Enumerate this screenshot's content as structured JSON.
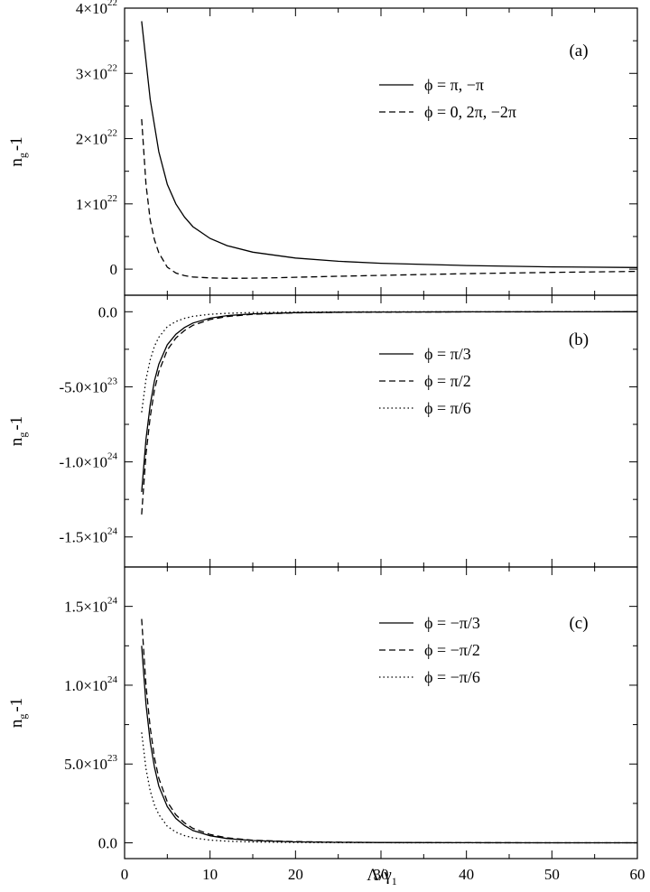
{
  "xaxis": {
    "label_main": "Λ/γ",
    "label_sub": "1",
    "range": [
      0,
      60
    ],
    "ticks": [
      0,
      10,
      20,
      30,
      40,
      50,
      60
    ],
    "tick_labels": [
      "0",
      "10",
      "20",
      "30",
      "40",
      "50",
      "60"
    ]
  },
  "chart_data": [
    {
      "type": "line",
      "panel_label": "(a)",
      "ylabel_main": "n",
      "ylabel_sub": "g",
      "ylabel_suffix": "-1",
      "ylim": [
        -4e+21,
        4e+22
      ],
      "y_ticks": [
        {
          "value": 0,
          "mantissa": "0",
          "exponent": ""
        },
        {
          "value": 1e+22,
          "mantissa": "1×10",
          "exponent": "22"
        },
        {
          "value": 2e+22,
          "mantissa": "2×10",
          "exponent": "22"
        },
        {
          "value": 3e+22,
          "mantissa": "3×10",
          "exponent": "22"
        },
        {
          "value": 4e+22,
          "mantissa": "4×10",
          "exponent": "22"
        }
      ],
      "legend_position": "top-right",
      "series": [
        {
          "name": "ϕ = π, −π",
          "style": "solid",
          "x": [
            2,
            3,
            4,
            5,
            6,
            7,
            8,
            10,
            12,
            15,
            20,
            25,
            30,
            40,
            50,
            60
          ],
          "y": [
            3.8e+22,
            2.6e+22,
            1.8e+22,
            1.3e+22,
            1e+22,
            8e+21,
            6.5e+21,
            4.7e+21,
            3.6e+21,
            2.6e+21,
            1.7e+21,
            1.2e+21,
            9e+20,
            5.5e+20,
            3.5e+20,
            2.5e+20
          ]
        },
        {
          "name": "ϕ = 0, 2π, −2π",
          "style": "dashed",
          "x": [
            2,
            2.5,
            3,
            3.5,
            4,
            5,
            6,
            7,
            8,
            10,
            12,
            14,
            17,
            20,
            25,
            30,
            40,
            50,
            60
          ],
          "y": [
            2.3e+22,
            1.3e+22,
            7.5e+21,
            4.5e+21,
            2.5e+21,
            3e+20,
            -6e+20,
            -1e+21,
            -1.2e+21,
            -1.35e+21,
            -1.4e+21,
            -1.4e+21,
            -1.35e+21,
            -1.25e+21,
            -1.1e+21,
            -9.5e+20,
            -7e+20,
            -5e+20,
            -3.5e+20
          ]
        }
      ]
    },
    {
      "type": "line",
      "panel_label": "(b)",
      "ylabel_main": "n",
      "ylabel_sub": "g",
      "ylabel_suffix": "-1",
      "ylim": [
        -1.7e+24,
        1.1e+23
      ],
      "y_ticks": [
        {
          "value": 0,
          "mantissa": "0.0",
          "exponent": ""
        },
        {
          "value": -5e+23,
          "mantissa": "-5.0×10",
          "exponent": "23"
        },
        {
          "value": -1e+24,
          "mantissa": "-1.0×10",
          "exponent": "24"
        },
        {
          "value": -1.5e+24,
          "mantissa": "-1.5×10",
          "exponent": "24"
        }
      ],
      "legend_position": "top-right",
      "series": [
        {
          "name": "ϕ = π/3",
          "style": "solid",
          "x": [
            2,
            2.5,
            3,
            3.5,
            4,
            5,
            6,
            7,
            8,
            10,
            12,
            15,
            20,
            25,
            30,
            40,
            50,
            60
          ],
          "y": [
            -1.2e+24,
            -8.5e+23,
            -6.2e+23,
            -4.6e+23,
            -3.5e+23,
            -2.2e+23,
            -1.5e+23,
            -1.05e+23,
            -7.5e+22,
            -4.3e+22,
            -2.6e+22,
            -1.4e+22,
            -6e+21,
            -3e+21,
            -1.8e+21,
            -8e+20,
            -4e+20,
            -2e+20
          ]
        },
        {
          "name": "ϕ = π/2",
          "style": "dashed",
          "x": [
            2,
            2.5,
            3,
            3.5,
            4,
            5,
            6,
            7,
            8,
            10,
            12,
            15,
            20,
            25,
            30,
            40,
            50,
            60
          ],
          "y": [
            -1.35e+24,
            -9.5e+23,
            -7e+23,
            -5.2e+23,
            -4e+23,
            -2.55e+23,
            -1.75e+23,
            -1.25e+23,
            -9e+22,
            -5.2e+22,
            -3.2e+22,
            -1.7e+22,
            -7.5e+21,
            -4e+21,
            -2.2e+21,
            -1e+21,
            -5e+20,
            -3e+20
          ]
        },
        {
          "name": "ϕ = π/6",
          "style": "dotted",
          "x": [
            2,
            2.5,
            3,
            3.5,
            4,
            5,
            6,
            7,
            8,
            10,
            12,
            15,
            20,
            25,
            30,
            40,
            50,
            60
          ],
          "y": [
            -6.7e+23,
            -4.5e+23,
            -3.2e+23,
            -2.3e+23,
            -1.7e+23,
            -1e+23,
            -6.5e+22,
            -4.4e+22,
            -3.1e+22,
            -1.7e+22,
            -1e+22,
            -5.5e+21,
            -2.4e+21,
            -1.3e+21,
            -8e+20,
            -3.5e+20,
            -2e+20,
            -1e+20
          ]
        }
      ]
    },
    {
      "type": "line",
      "panel_label": "(c)",
      "ylabel_main": "n",
      "ylabel_sub": "g",
      "ylabel_suffix": "-1",
      "ylim": [
        -1e+23,
        1.75e+24
      ],
      "y_ticks": [
        {
          "value": 0,
          "mantissa": "0.0",
          "exponent": ""
        },
        {
          "value": 5e+23,
          "mantissa": "5.0×10",
          "exponent": "23"
        },
        {
          "value": 1e+24,
          "mantissa": "1.0×10",
          "exponent": "24"
        },
        {
          "value": 1.5e+24,
          "mantissa": "1.5×10",
          "exponent": "24"
        }
      ],
      "legend_position": "top-right",
      "series": [
        {
          "name": "ϕ = −π/3",
          "style": "solid",
          "x": [
            2,
            2.5,
            3,
            3.5,
            4,
            5,
            6,
            7,
            8,
            10,
            12,
            15,
            20,
            25,
            30,
            40,
            50,
            60
          ],
          "y": [
            1.25e+24,
            8.8e+23,
            6.4e+23,
            4.8e+23,
            3.6e+23,
            2.3e+23,
            1.55e+23,
            1.1e+23,
            7.8e+22,
            4.5e+22,
            2.7e+22,
            1.45e+22,
            6.2e+21,
            3.2e+21,
            1.9e+21,
            8.5e+20,
            4.2e+20,
            2.1e+20
          ]
        },
        {
          "name": "ϕ = −π/2",
          "style": "dashed",
          "x": [
            2,
            2.5,
            3,
            3.5,
            4,
            5,
            6,
            7,
            8,
            10,
            12,
            15,
            20,
            25,
            30,
            40,
            50,
            60
          ],
          "y": [
            1.42e+24,
            1e+24,
            7.3e+23,
            5.4e+23,
            4.1e+23,
            2.6e+23,
            1.78e+23,
            1.27e+23,
            9.2e+22,
            5.3e+22,
            3.2e+22,
            1.7e+22,
            7.5e+21,
            4e+21,
            2.2e+21,
            1e+21,
            5e+20,
            3e+20
          ]
        },
        {
          "name": "ϕ = −π/6",
          "style": "dotted",
          "x": [
            2,
            2.5,
            3,
            3.5,
            4,
            5,
            6,
            7,
            8,
            10,
            12,
            15,
            20,
            25,
            30,
            40,
            50,
            60
          ],
          "y": [
            7e+23,
            4.7e+23,
            3.3e+23,
            2.4e+23,
            1.8e+23,
            1.05e+23,
            6.8e+22,
            4.6e+22,
            3.2e+22,
            1.75e+22,
            1.05e+22,
            5.6e+21,
            2.5e+21,
            1.3e+21,
            8e+20,
            3.5e+20,
            2e+20,
            1e+20
          ]
        }
      ]
    }
  ]
}
